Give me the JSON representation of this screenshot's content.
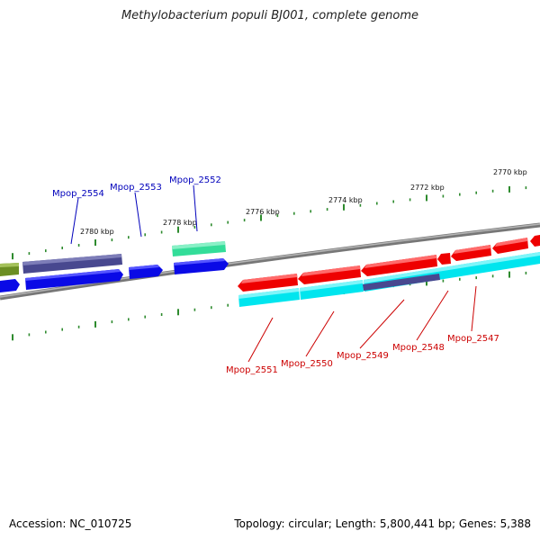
{
  "title": "Methylobacterium populi BJ001, complete genome",
  "footer": {
    "accession": "Accession: NC_010725",
    "info": "Topology: circular; Length: 5,800,441 bp; Genes: 5,388"
  },
  "colors": {
    "backbone": "#7a7a7a",
    "tick": "#2e8b2e",
    "forward_label": "#0000bb",
    "reverse_label": "#cc0000",
    "blue": "#0a0ae6",
    "navy": "#48488f",
    "olive": "#6b8e23",
    "teal": "#33dd99",
    "red": "#ee0000",
    "cyan": "#00e5ee"
  },
  "scale_labels": [
    "2780 kbp",
    "2778 kbp",
    "2776 kbp",
    "2774 kbp",
    "2772 kbp",
    "2770 kbp"
  ],
  "gene_labels": {
    "forward": [
      "Mpop_2554",
      "Mpop_2553",
      "Mpop_2552"
    ],
    "reverse": [
      "Mpop_2551",
      "Mpop_2550",
      "Mpop_2549",
      "Mpop_2548",
      "Mpop_2547"
    ]
  }
}
